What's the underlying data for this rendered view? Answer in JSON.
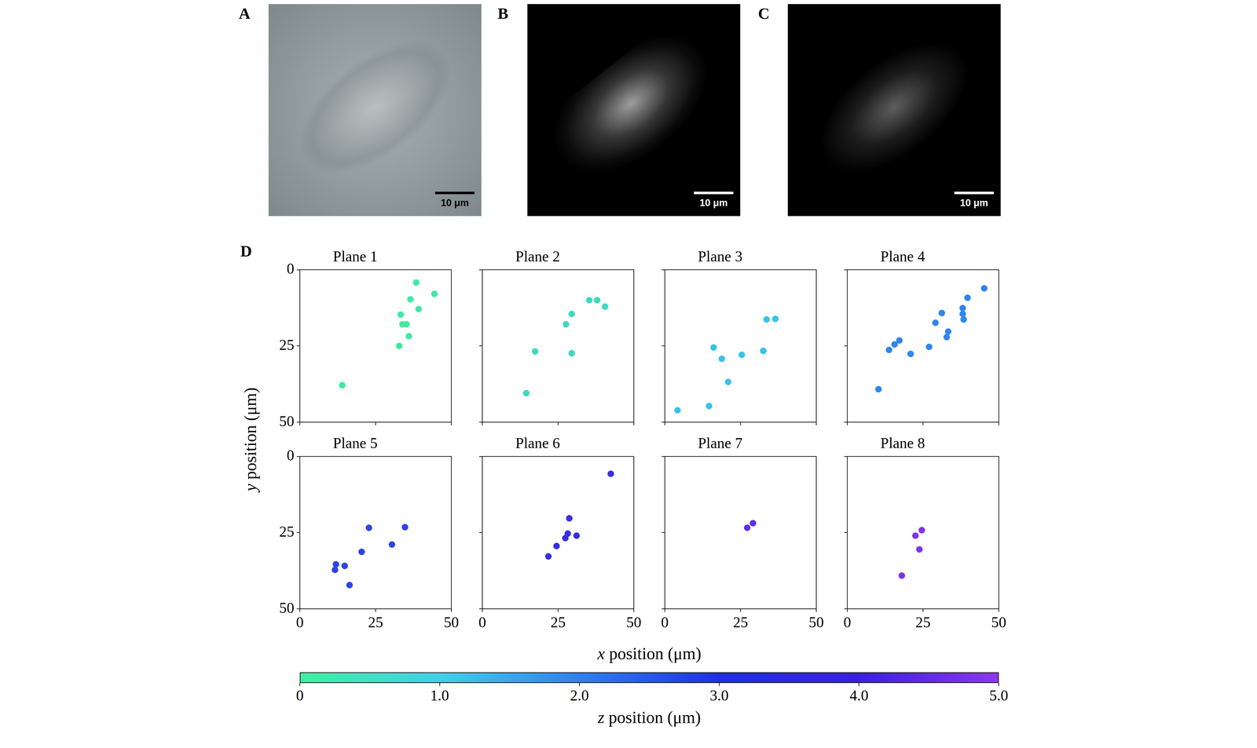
{
  "panels": [
    {
      "letter": "A",
      "scale_bar": "10 μm"
    },
    {
      "letter": "B",
      "scale_bar": "10 μm"
    },
    {
      "letter": "C",
      "scale_bar": "10 μm"
    }
  ],
  "figure_d": {
    "letter": "D",
    "x_label": "x position (μm)",
    "y_label": "y position (μm)",
    "colorbar": {
      "label": "z position (μm)",
      "range": [
        0,
        5
      ],
      "ticks": [
        0,
        {
          "value": 1,
          "label": "1.0"
        },
        {
          "value": 2,
          "label": "2.0"
        },
        {
          "value": 3,
          "label": "3.0"
        },
        {
          "value": 4,
          "label": "4.0"
        },
        {
          "value": 5,
          "label": "5.0"
        }
      ]
    }
  },
  "chart_data": [
    {
      "type": "scatter",
      "title": "Plane 1",
      "color": "#40eaa0",
      "grid": false,
      "tick_labels": "y",
      "x": [
        38.4,
        36.5,
        44.4,
        39.2,
        33.3,
        33.9,
        35.2,
        36.0,
        32.8,
        14.0
      ],
      "values": [
        4.2,
        9.7,
        7.9,
        12.9,
        14.7,
        17.9,
        17.9,
        21.8,
        25.0,
        37.9
      ],
      "xlim": [
        0,
        50
      ],
      "ylim": [
        50,
        0
      ],
      "xticks": [
        0,
        25,
        50
      ],
      "yticks": [
        0,
        25,
        50
      ]
    },
    {
      "type": "scatter",
      "title": "Plane 2",
      "color": "#40d8c0",
      "grid": false,
      "tick_labels": false,
      "x": [
        35.3,
        37.9,
        40.5,
        29.5,
        27.6,
        17.4,
        29.5,
        14.5
      ],
      "values": [
        10.0,
        10.0,
        12.1,
        14.5,
        17.9,
        26.8,
        27.4,
        40.5
      ],
      "xlim": [
        0,
        50
      ],
      "ylim": [
        50,
        0
      ],
      "xticks": [
        0,
        25,
        50
      ],
      "yticks": [
        0,
        25,
        50
      ]
    },
    {
      "type": "scatter",
      "title": "Plane 3",
      "color": "#38c4e8",
      "grid": false,
      "tick_labels": false,
      "x": [
        33.6,
        36.5,
        16.1,
        18.8,
        25.4,
        32.5,
        20.9,
        14.6,
        4.2
      ],
      "values": [
        16.3,
        16.1,
        25.5,
        29.2,
        27.9,
        26.6,
        36.8,
        44.7,
        46.1
      ],
      "xlim": [
        0,
        50
      ],
      "ylim": [
        50,
        0
      ],
      "xticks": [
        0,
        25,
        50
      ],
      "yticks": [
        0,
        25,
        50
      ]
    },
    {
      "type": "scatter",
      "title": "Plane 4",
      "color": "#2f86ec",
      "grid": false,
      "tick_labels": false,
      "x": [
        45.2,
        39.7,
        31.2,
        29.1,
        38.1,
        38.1,
        38.4,
        33.3,
        32.8,
        17.2,
        15.6,
        13.8,
        20.9,
        27.0,
        10.3
      ],
      "values": [
        6.1,
        9.2,
        14.2,
        17.4,
        12.6,
        14.5,
        16.3,
        20.3,
        22.1,
        23.2,
        24.5,
        26.3,
        27.6,
        25.3,
        39.2
      ],
      "xlim": [
        0,
        50
      ],
      "ylim": [
        50,
        0
      ],
      "xticks": [
        0,
        25,
        50
      ],
      "yticks": [
        0,
        25,
        50
      ]
    },
    {
      "type": "scatter",
      "title": "Plane 5",
      "color": "#2f45e4",
      "grid": false,
      "tick_labels": true,
      "x": [
        22.8,
        34.7,
        30.4,
        20.4,
        11.9,
        14.8,
        11.6,
        16.4
      ],
      "values": [
        23.4,
        23.2,
        28.9,
        31.3,
        35.4,
        35.9,
        37.2,
        42.2
      ],
      "xlim": [
        0,
        50
      ],
      "ylim": [
        50,
        0
      ],
      "xticks": [
        0,
        25,
        50
      ],
      "yticks": [
        0,
        25,
        50
      ]
    },
    {
      "type": "scatter",
      "title": "Plane 6",
      "color": "#3a2fe0",
      "grid": false,
      "tick_labels": "x",
      "x": [
        42.4,
        28.7,
        28.2,
        31.1,
        27.4,
        24.5,
        21.8
      ],
      "values": [
        5.7,
        20.3,
        25.3,
        26.0,
        26.8,
        29.4,
        32.8
      ],
      "xlim": [
        0,
        50
      ],
      "ylim": [
        50,
        0
      ],
      "xticks": [
        0,
        25,
        50
      ],
      "yticks": [
        0,
        25,
        50
      ]
    },
    {
      "type": "scatter",
      "title": "Plane 7",
      "color": "#5a2fe6",
      "grid": false,
      "tick_labels": "x",
      "x": [
        29.1,
        27.2
      ],
      "values": [
        21.9,
        23.4
      ],
      "xlim": [
        0,
        50
      ],
      "ylim": [
        50,
        0
      ],
      "xticks": [
        0,
        25,
        50
      ],
      "yticks": [
        0,
        25,
        50
      ]
    },
    {
      "type": "scatter",
      "title": "Plane 8",
      "color": "#7e35ea",
      "grid": false,
      "tick_labels": "x",
      "x": [
        24.6,
        22.5,
        23.8,
        18.0
      ],
      "values": [
        24.2,
        26.0,
        30.5,
        39.1
      ],
      "xlim": [
        0,
        50
      ],
      "ylim": [
        50,
        0
      ],
      "xticks": [
        0,
        25,
        50
      ],
      "yticks": [
        0,
        25,
        50
      ]
    }
  ]
}
